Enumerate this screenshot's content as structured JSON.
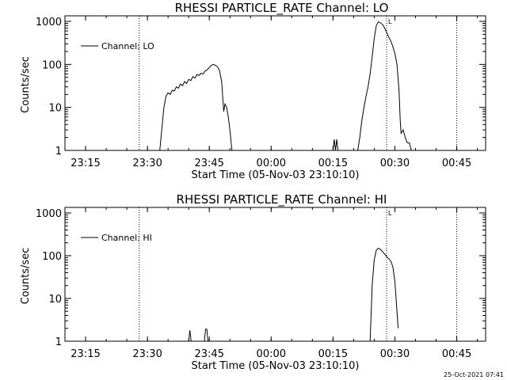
{
  "footer": {
    "timestamp": "25-Oct-2021 07:41"
  },
  "chart_data": [
    {
      "type": "line",
      "title": "RHESSI PARTICLE_RATE Channel: LO",
      "xlabel": "Start Time (05-Nov-03 23:10:10)",
      "ylabel": "Counts/sec",
      "yscale": "log",
      "ylim": [
        1,
        1000
      ],
      "xlim": [
        "23:10",
        "00:52"
      ],
      "x_ticks": [
        "23:15",
        "23:30",
        "23:45",
        "00:00",
        "00:15",
        "00:30",
        "00:45"
      ],
      "y_ticks": [
        "1",
        "10",
        "100",
        "1000"
      ],
      "legend": "top-left",
      "grid": false,
      "vlines": [
        "23:28",
        "00:28",
        "00:45"
      ],
      "marker_label": "L",
      "series": [
        {
          "name": "Channel: LO",
          "color": "#000000",
          "segments": [
            [
              [
                "23:33.0",
                1
              ],
              [
                "23:34.0",
                10
              ],
              [
                "23:34.5",
                18
              ],
              [
                "23:35.0",
                22
              ],
              [
                "23:35.5",
                20
              ],
              [
                "23:36.0",
                25
              ],
              [
                "23:36.5",
                24
              ],
              [
                "23:37.0",
                30
              ],
              [
                "23:37.5",
                28
              ],
              [
                "23:38.0",
                35
              ],
              [
                "23:38.5",
                32
              ],
              [
                "23:39.0",
                40
              ],
              [
                "23:39.5",
                36
              ],
              [
                "23:40.0",
                45
              ],
              [
                "23:40.5",
                42
              ],
              [
                "23:41.0",
                52
              ],
              [
                "23:41.5",
                48
              ],
              [
                "23:42.0",
                58
              ],
              [
                "23:42.5",
                55
              ],
              [
                "23:43.0",
                62
              ],
              [
                "23:43.5",
                60
              ],
              [
                "23:44.0",
                70
              ],
              [
                "23:44.5",
                75
              ],
              [
                "23:45.0",
                85
              ],
              [
                "23:45.5",
                95
              ],
              [
                "23:46.0",
                100
              ],
              [
                "23:46.5",
                95
              ],
              [
                "23:47.0",
                88
              ],
              [
                "23:47.5",
                70
              ],
              [
                "23:48.0",
                40
              ],
              [
                "23:48.5",
                8
              ],
              [
                "23:48.8",
                12
              ],
              [
                "23:49.2",
                10
              ],
              [
                "23:49.6",
                6
              ],
              [
                "23:50.0",
                3
              ],
              [
                "23:50.5",
                1
              ]
            ],
            [
              [
                "00:15.0",
                1
              ],
              [
                "00:15.3",
                1.8
              ],
              [
                "00:15.6",
                1
              ],
              [
                "00:15.9",
                1.8
              ],
              [
                "00:16.2",
                1
              ]
            ],
            [
              [
                "00:21.0",
                1
              ],
              [
                "00:21.5",
                2
              ],
              [
                "00:22.0",
                5
              ],
              [
                "00:22.5",
                10
              ],
              [
                "00:23.0",
                18
              ],
              [
                "00:23.5",
                30
              ],
              [
                "00:24.0",
                60
              ],
              [
                "00:24.5",
                150
              ],
              [
                "00:25.0",
                400
              ],
              [
                "00:25.5",
                800
              ],
              [
                "00:26.0",
                980
              ],
              [
                "00:26.5",
                920
              ],
              [
                "00:27.0",
                850
              ],
              [
                "00:27.5",
                700
              ],
              [
                "00:28.0",
                550
              ],
              [
                "00:28.5",
                430
              ],
              [
                "00:29.0",
                350
              ],
              [
                "00:29.5",
                260
              ],
              [
                "00:30.0",
                180
              ],
              [
                "00:30.5",
                100
              ],
              [
                "00:31.0",
                25
              ],
              [
                "00:31.3",
                5
              ],
              [
                "00:31.5",
                2.5
              ],
              [
                "00:32.0",
                3
              ],
              [
                "00:32.5",
                2
              ],
              [
                "00:33.0",
                1.5
              ],
              [
                "00:33.5",
                1.5
              ],
              [
                "00:34.0",
                1
              ]
            ]
          ]
        }
      ]
    },
    {
      "type": "line",
      "title": "RHESSI PARTICLE_RATE Channel: HI",
      "xlabel": "Start Time (05-Nov-03 23:10:10)",
      "ylabel": "Counts/sec",
      "yscale": "log",
      "ylim": [
        1,
        1000
      ],
      "xlim": [
        "23:10",
        "00:52"
      ],
      "x_ticks": [
        "23:15",
        "23:30",
        "23:45",
        "00:00",
        "00:15",
        "00:30",
        "00:45"
      ],
      "y_ticks": [
        "1",
        "10",
        "100",
        "1000"
      ],
      "legend": "top-left",
      "grid": false,
      "vlines": [
        "23:28",
        "00:28",
        "00:45"
      ],
      "marker_label": "L",
      "series": [
        {
          "name": "Channel: HI",
          "color": "#000000",
          "segments": [
            [
              [
                "23:40.0",
                1
              ],
              [
                "23:40.3",
                1.8
              ],
              [
                "23:40.6",
                1
              ]
            ],
            [
              [
                "23:43.8",
                1
              ],
              [
                "23:44.1",
                1.9
              ],
              [
                "23:44.4",
                1.9
              ],
              [
                "23:44.7",
                1
              ]
            ],
            [
              [
                "00:24.0",
                1
              ],
              [
                "00:24.5",
                20
              ],
              [
                "00:25.0",
                80
              ],
              [
                "00:25.5",
                135
              ],
              [
                "00:26.0",
                150
              ],
              [
                "00:26.5",
                140
              ],
              [
                "00:27.0",
                125
              ],
              [
                "00:27.5",
                110
              ],
              [
                "00:28.0",
                95
              ],
              [
                "00:28.5",
                85
              ],
              [
                "00:29.0",
                75
              ],
              [
                "00:29.5",
                55
              ],
              [
                "00:30.0",
                25
              ],
              [
                "00:30.5",
                5
              ],
              [
                "00:30.8",
                2
              ]
            ]
          ]
        }
      ]
    }
  ]
}
